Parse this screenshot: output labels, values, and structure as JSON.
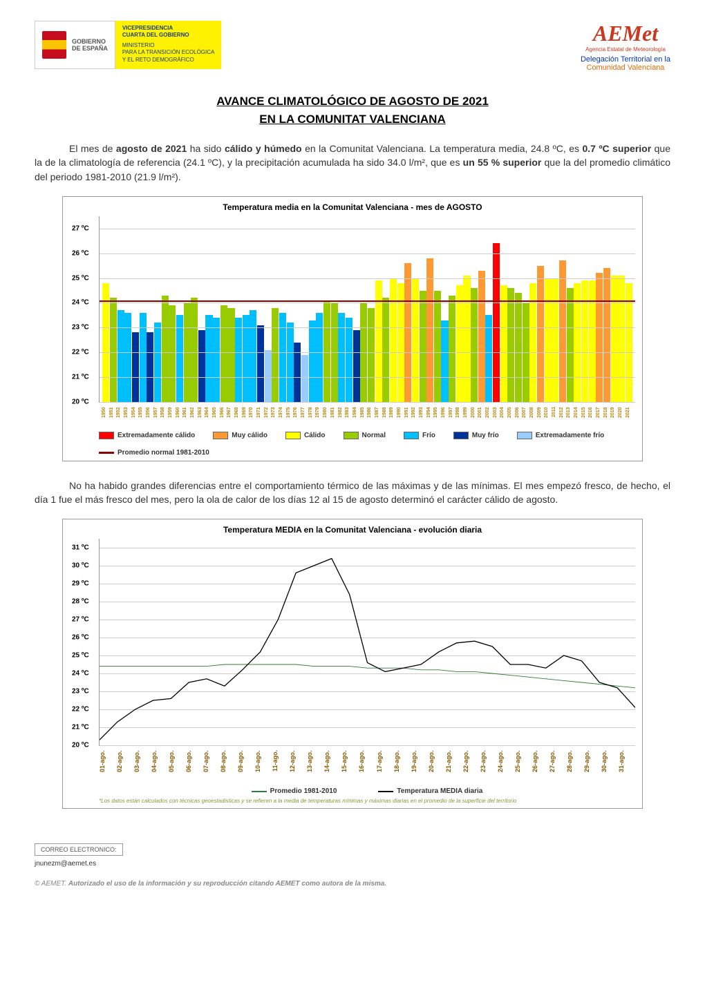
{
  "header": {
    "gobierno": "GOBIERNO\nDE ESPAÑA",
    "vicepresidencia": "VICEPRESIDENCIA\nCUARTA DEL GOBIERNO",
    "ministerio": "MINISTERIO\nPARA LA TRANSICIÓN ECOLÓGICA\nY EL RETO DEMOGRÁFICO",
    "aemet": "AEMet",
    "aemet_sub": "Agencia Estatal de Meteorología",
    "delegation_line1": "Delegación Territorial en la",
    "delegation_line2": "Comunidad Valenciana"
  },
  "title": {
    "line1": "AVANCE CLIMATOLÓGICO DE AGOSTO DE 2021",
    "line2": "EN LA COMUNITAT VALENCIANA"
  },
  "para1": {
    "t1": "El mes de ",
    "b1": "agosto de 2021",
    "t2": " ha sido ",
    "b2": "cálido y húmedo",
    "t3": " en la Comunitat Valenciana. La temperatura media, 24.8 ºC, es ",
    "b3": "0.7 ºC superior",
    "t4": " que la de la climatología de referencia (24.1 ºC), y la precipitación acumulada ha sido 34.0 l/m², que es ",
    "b4": "un 55 % superior",
    "t5": " que la del promedio climático del periodo 1981-2010 (21.9 l/m²)."
  },
  "para2": "No ha habido grandes diferencias entre el comportamiento térmico de las máximas y de las mínimas. El mes empezó fresco, de hecho, el día 1 fue el más fresco del mes, pero la ola de calor de los días 12 al 15 de agosto determinó el carácter cálido de agosto.",
  "chart1": {
    "title": "Temperatura media en la Comunitat Valenciana - mes de AGOSTO",
    "ylim": [
      20,
      27.5
    ],
    "yticks": [
      20,
      21,
      22,
      23,
      24,
      25,
      26,
      27
    ],
    "ytick_labels": [
      "20 ºC",
      "21 ºC",
      "22 ºC",
      "23 ºC",
      "24 ºC",
      "25 ºC",
      "26 ºC",
      "27 ºC"
    ],
    "normal_line": 24.1,
    "colors": {
      "ext_calido": "#ff0000",
      "muy_calido": "#ff9933",
      "calido": "#ffff00",
      "normal": "#99cc00",
      "frio": "#00bfff",
      "muy_frio": "#003399",
      "ext_frio": "#99ccff",
      "normal_line": "#8b0000",
      "grid": "#cccccc",
      "bg": "#ffffff"
    },
    "legend": [
      {
        "label": "Extremadamente cálido",
        "key": "ext_calido"
      },
      {
        "label": "Muy cálido",
        "key": "muy_calido"
      },
      {
        "label": "Cálido",
        "key": "calido"
      },
      {
        "label": "Normal",
        "key": "normal"
      },
      {
        "label": "Frío",
        "key": "frio"
      },
      {
        "label": "Muy frío",
        "key": "muy_frio"
      },
      {
        "label": "Extremadamente frío",
        "key": "ext_frio"
      },
      {
        "label": "Promedio normal 1981-2010",
        "key": "normal_line",
        "line": true
      }
    ],
    "years": [
      1950,
      1951,
      1952,
      1953,
      1954,
      1955,
      1956,
      1957,
      1958,
      1959,
      1960,
      1961,
      1962,
      1963,
      1964,
      1965,
      1966,
      1967,
      1968,
      1969,
      1970,
      1971,
      1972,
      1973,
      1974,
      1975,
      1976,
      1977,
      1978,
      1979,
      1980,
      1981,
      1982,
      1983,
      1984,
      1985,
      1986,
      1987,
      1988,
      1989,
      1990,
      1991,
      1992,
      1993,
      1994,
      1995,
      1996,
      1997,
      1998,
      1999,
      2000,
      2001,
      2002,
      2003,
      2004,
      2005,
      2006,
      2007,
      2008,
      2009,
      2010,
      2011,
      2012,
      2013,
      2014,
      2015,
      2016,
      2017,
      2018,
      2019,
      2020,
      2021
    ],
    "values": [
      24.8,
      24.2,
      23.7,
      23.6,
      22.8,
      23.6,
      22.8,
      23.2,
      24.3,
      23.9,
      23.5,
      24.0,
      24.2,
      22.9,
      23.5,
      23.4,
      23.9,
      23.8,
      23.4,
      23.5,
      23.7,
      23.1,
      22.1,
      23.8,
      23.6,
      23.2,
      22.4,
      21.9,
      23.3,
      23.6,
      24.1,
      24.0,
      23.6,
      23.4,
      22.9,
      24.0,
      23.8,
      24.9,
      24.2,
      25.0,
      24.8,
      25.6,
      25.0,
      24.5,
      25.8,
      24.5,
      23.3,
      24.3,
      24.7,
      25.1,
      24.6,
      25.3,
      23.5,
      26.4,
      24.7,
      24.6,
      24.4,
      24.0,
      24.8,
      25.5,
      25.0,
      25.0,
      25.7,
      24.6,
      24.8,
      24.9,
      24.9,
      25.2,
      25.4,
      25.1,
      25.1,
      24.8
    ],
    "cats": [
      "calido",
      "normal",
      "frio",
      "frio",
      "muy_frio",
      "frio",
      "muy_frio",
      "frio",
      "normal",
      "normal",
      "frio",
      "normal",
      "normal",
      "muy_frio",
      "frio",
      "frio",
      "normal",
      "normal",
      "frio",
      "frio",
      "frio",
      "muy_frio",
      "ext_frio",
      "normal",
      "frio",
      "frio",
      "muy_frio",
      "ext_frio",
      "frio",
      "frio",
      "normal",
      "normal",
      "frio",
      "frio",
      "muy_frio",
      "normal",
      "normal",
      "calido",
      "normal",
      "calido",
      "calido",
      "muy_calido",
      "calido",
      "normal",
      "muy_calido",
      "normal",
      "frio",
      "normal",
      "calido",
      "calido",
      "normal",
      "muy_calido",
      "frio",
      "ext_calido",
      "calido",
      "normal",
      "normal",
      "normal",
      "calido",
      "muy_calido",
      "calido",
      "calido",
      "muy_calido",
      "normal",
      "calido",
      "calido",
      "calido",
      "muy_calido",
      "muy_calido",
      "calido",
      "calido",
      "calido"
    ]
  },
  "chart2": {
    "title": "Temperatura MEDIA en la Comunitat Valenciana - evolución diaria",
    "ylim": [
      20,
      31.5
    ],
    "yticks": [
      20,
      21,
      22,
      23,
      24,
      25,
      26,
      27,
      28,
      29,
      30,
      31
    ],
    "ytick_labels": [
      "20 ºC",
      "21 ºC",
      "22 ºC",
      "23 ºC",
      "24 ºC",
      "25 ºC",
      "26 ºC",
      "27 ºC",
      "28 ºC",
      "29 ºC",
      "30 ºC",
      "31 ºC"
    ],
    "days": [
      "01-ago.",
      "02-ago.",
      "03-ago.",
      "04-ago.",
      "05-ago.",
      "06-ago.",
      "07-ago.",
      "08-ago.",
      "09-ago.",
      "10-ago.",
      "11-ago.",
      "12-ago.",
      "13-ago.",
      "14-ago.",
      "15-ago.",
      "16-ago.",
      "17-ago.",
      "18-ago.",
      "19-ago.",
      "20-ago.",
      "21-ago.",
      "22-ago.",
      "23-ago.",
      "24-ago.",
      "25-ago.",
      "26-ago.",
      "27-ago.",
      "28-ago.",
      "29-ago.",
      "30-ago.",
      "31-ago."
    ],
    "normal": [
      24.4,
      24.4,
      24.4,
      24.4,
      24.4,
      24.4,
      24.4,
      24.5,
      24.5,
      24.5,
      24.5,
      24.5,
      24.4,
      24.4,
      24.4,
      24.3,
      24.3,
      24.3,
      24.2,
      24.2,
      24.1,
      24.1,
      24.0,
      23.9,
      23.8,
      23.7,
      23.6,
      23.5,
      23.4,
      23.3,
      23.2
    ],
    "actual": [
      20.3,
      21.3,
      22.0,
      22.5,
      22.6,
      23.5,
      23.7,
      23.3,
      24.2,
      25.2,
      27.0,
      29.6,
      30.0,
      30.4,
      28.4,
      24.6,
      24.1,
      24.3,
      24.5,
      25.2,
      25.7,
      25.8,
      25.5,
      24.5,
      24.5,
      24.3,
      25.0,
      24.7,
      23.5,
      23.2,
      22.1
    ],
    "colors": {
      "normal_line": "#2e7d32",
      "actual_line": "#000000",
      "grid": "#cccccc",
      "bg": "#ffffff"
    },
    "legend": [
      {
        "label": "Promedio 1981-2010",
        "color": "#2e7d32"
      },
      {
        "label": "Temperatura MEDIA diaria",
        "color": "#000000"
      }
    ],
    "footnote": "*Los datos están calculados con técnicas geoestadísticas y se refieren a la media de temperaturas mínimas y máximas diarias en el promedio de la superficie del territorio"
  },
  "footer": {
    "correo_label": "CORREO ELECTRONICO:",
    "email": "jnunezm@aemet.es",
    "copyright": "© AEMET. ",
    "auth": "Autorizado el uso de la información y su reproducción citando AEMET como autora de la misma."
  }
}
